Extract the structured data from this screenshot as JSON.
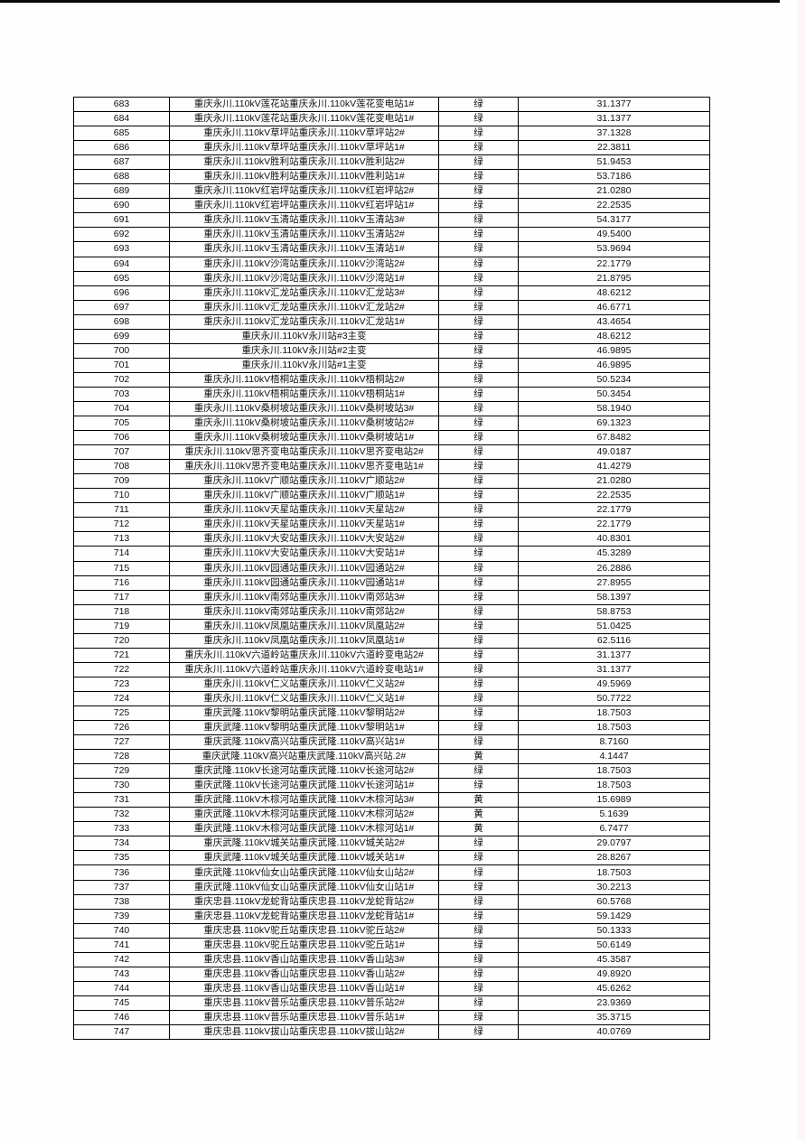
{
  "page": {
    "kind": "substation-load-table",
    "background_color": "#fefefe",
    "top_bar_color": "#0a0a0a",
    "border_color": "#000000",
    "text_color": "#111111",
    "status_green_label": "绿",
    "status_yellow_label": "黄"
  },
  "table": {
    "rows": [
      [
        "683",
        "重庆永川.110kV莲花站重庆永川.110kV莲花变电站1#",
        "绿",
        "31.1377"
      ],
      [
        "684",
        "重庆永川.110kV莲花站重庆永川.110kV莲花变电站1#",
        "绿",
        "31.1377"
      ],
      [
        "685",
        "重庆永川.110kV草坪站重庆永川.110kV草坪站2#",
        "绿",
        "37.1328"
      ],
      [
        "686",
        "重庆永川.110kV草坪站重庆永川.110kV草坪站1#",
        "绿",
        "22.3811"
      ],
      [
        "687",
        "重庆永川.110kV胜利站重庆永川.110kV胜利站2#",
        "绿",
        "51.9453"
      ],
      [
        "688",
        "重庆永川.110kV胜利站重庆永川.110kV胜利站1#",
        "绿",
        "53.7186"
      ],
      [
        "689",
        "重庆永川.110kV红岩坪站重庆永川.110kV红岩坪站2#",
        "绿",
        "21.0280"
      ],
      [
        "690",
        "重庆永川.110kV红岩坪站重庆永川.110kV红岩坪站1#",
        "绿",
        "22.2535"
      ],
      [
        "691",
        "重庆永川.110kV玉清站重庆永川.110kV玉清站3#",
        "绿",
        "54.3177"
      ],
      [
        "692",
        "重庆永川.110kV玉清站重庆永川.110kV玉清站2#",
        "绿",
        "49.5400"
      ],
      [
        "693",
        "重庆永川.110kV玉清站重庆永川.110kV玉清站1#",
        "绿",
        "53.9694"
      ],
      [
        "694",
        "重庆永川.110kV沙湾站重庆永川.110kV沙湾站2#",
        "绿",
        "22.1779"
      ],
      [
        "695",
        "重庆永川.110kV沙湾站重庆永川.110kV沙湾站1#",
        "绿",
        "21.8795"
      ],
      [
        "696",
        "重庆永川.110kV汇龙站重庆永川.110kV汇龙站3#",
        "绿",
        "48.6212"
      ],
      [
        "697",
        "重庆永川.110kV汇龙站重庆永川.110kV汇龙站2#",
        "绿",
        "46.6771"
      ],
      [
        "698",
        "重庆永川.110kV汇龙站重庆永川.110kV汇龙站1#",
        "绿",
        "43.4654"
      ],
      [
        "699",
        "重庆永川.110kV永川站#3主变",
        "绿",
        "48.6212"
      ],
      [
        "700",
        "重庆永川.110kV永川站#2主变",
        "绿",
        "46.9895"
      ],
      [
        "701",
        "重庆永川.110kV永川站#1主变",
        "绿",
        "46.9895"
      ],
      [
        "702",
        "重庆永川.110kV梧桐站重庆永川.110kV梧桐站2#",
        "绿",
        "50.5234"
      ],
      [
        "703",
        "重庆永川.110kV梧桐站重庆永川.110kV梧桐站1#",
        "绿",
        "50.3454"
      ],
      [
        "704",
        "重庆永川.110kV桑树坡站重庆永川.110kV桑树坡站3#",
        "绿",
        "58.1940"
      ],
      [
        "705",
        "重庆永川.110kV桑树坡站重庆永川.110kV桑树坡站2#",
        "绿",
        "69.1323"
      ],
      [
        "706",
        "重庆永川.110kV桑树坡站重庆永川.110kV桑树坡站1#",
        "绿",
        "67.8482"
      ],
      [
        "707",
        "重庆永川.110kV思齐变电站重庆永川.110kV思齐变电站2#",
        "绿",
        "49.0187"
      ],
      [
        "708",
        "重庆永川.110kV思齐变电站重庆永川.110kV思齐变电站1#",
        "绿",
        "41.4279"
      ],
      [
        "709",
        "重庆永川.110kV广顺站重庆永川.110kV广顺站2#",
        "绿",
        "21.0280"
      ],
      [
        "710",
        "重庆永川.110kV广顺站重庆永川.110kV广顺站1#",
        "绿",
        "22.2535"
      ],
      [
        "711",
        "重庆永川.110kV天星站重庆永川.110kV天星站2#",
        "绿",
        "22.1779"
      ],
      [
        "712",
        "重庆永川.110kV天星站重庆永川.110kV天星站1#",
        "绿",
        "22.1779"
      ],
      [
        "713",
        "重庆永川.110kV大安站重庆永川.110kV大安站2#",
        "绿",
        "40.8301"
      ],
      [
        "714",
        "重庆永川.110kV大安站重庆永川.110kV大安站1#",
        "绿",
        "45.3289"
      ],
      [
        "715",
        "重庆永川.110kV园通站重庆永川.110kV园通站2#",
        "绿",
        "26.2886"
      ],
      [
        "716",
        "重庆永川.110kV园通站重庆永川.110kV园通站1#",
        "绿",
        "27.8955"
      ],
      [
        "717",
        "重庆永川.110kV南郊站重庆永川.110kV南郊站3#",
        "绿",
        "58.1397"
      ],
      [
        "718",
        "重庆永川.110kV南郊站重庆永川.110kV南郊站2#",
        "绿",
        "58.8753"
      ],
      [
        "719",
        "重庆永川.110kV凤凰站重庆永川.110kV凤凰站2#",
        "绿",
        "51.0425"
      ],
      [
        "720",
        "重庆永川.110kV凤凰站重庆永川.110kV凤凰站1#",
        "绿",
        "62.5116"
      ],
      [
        "721",
        "重庆永川.110kV六道岭站重庆永川.110kV六道岭变电站2#",
        "绿",
        "31.1377"
      ],
      [
        "722",
        "重庆永川.110kV六道岭站重庆永川.110kV六道岭变电站1#",
        "绿",
        "31.1377"
      ],
      [
        "723",
        "重庆永川.110kV仁义站重庆永川.110kV仁义站2#",
        "绿",
        "49.5969"
      ],
      [
        "724",
        "重庆永川.110kV仁义站重庆永川.110kV仁义站1#",
        "绿",
        "50.7722"
      ],
      [
        "725",
        "重庆武隆.110kV黎明站重庆武隆.110kV黎明站2#",
        "绿",
        "18.7503"
      ],
      [
        "726",
        "重庆武隆.110kV黎明站重庆武隆.110kV黎明站1#",
        "绿",
        "18.7503"
      ],
      [
        "727",
        "重庆武隆.110kV高兴站重庆武隆.110kV高兴站1#",
        "绿",
        "8.7160"
      ],
      [
        "728",
        "重庆武隆.110kV高兴站重庆武隆.110kV高兴站.2#",
        "黄",
        "4.1447"
      ],
      [
        "729",
        "重庆武隆.110kV长途河站重庆武隆.110kV长途河站2#",
        "绿",
        "18.7503"
      ],
      [
        "730",
        "重庆武隆.110kV长途河站重庆武隆.110kV长途河站1#",
        "绿",
        "18.7503"
      ],
      [
        "731",
        "重庆武隆.110kV木棕河站重庆武隆.110kV木棕河站3#",
        "黄",
        "15.6989"
      ],
      [
        "732",
        "重庆武隆.110kV木棕河站重庆武隆.110kV木棕河站2#",
        "黄",
        "5.1639"
      ],
      [
        "733",
        "重庆武隆.110kV木棕河站重庆武隆.110kV木棕河站1#",
        "黄",
        "6.7477"
      ],
      [
        "734",
        "重庆武隆.110kV城关站重庆武隆.110kV城关站2#",
        "绿",
        "29.0797"
      ],
      [
        "735",
        "重庆武隆.110kV城关站重庆武隆.110kV城关站1#",
        "绿",
        "28.8267"
      ],
      [
        "736",
        "重庆武隆.110kV仙女山站重庆武隆.110kV仙女山站2#",
        "绿",
        "18.7503"
      ],
      [
        "737",
        "重庆武隆.110kV仙女山站重庆武隆.110kV仙女山站1#",
        "绿",
        "30.2213"
      ],
      [
        "738",
        "重庆忠县.110kV龙蛇背站重庆忠县.110kV龙蛇背站2#",
        "绿",
        "60.5768"
      ],
      [
        "739",
        "重庆忠县.110kV龙蛇背站重庆忠县.110kV龙蛇背站1#",
        "绿",
        "59.1429"
      ],
      [
        "740",
        "重庆忠县.110kV驼丘站重庆忠县.110kV驼丘站2#",
        "绿",
        "50.1333"
      ],
      [
        "741",
        "重庆忠县.110kV驼丘站重庆忠县.110kV驼丘站1#",
        "绿",
        "50.6149"
      ],
      [
        "742",
        "重庆忠县.110kV香山站重庆忠县.110kV香山站3#",
        "绿",
        "45.3587"
      ],
      [
        "743",
        "重庆忠县.110kV香山站重庆忠县.110kV香山站2#",
        "绿",
        "49.8920"
      ],
      [
        "744",
        "重庆忠县.110kV香山站重庆忠县.110kV香山站1#",
        "绿",
        "45.6262"
      ],
      [
        "745",
        "重庆忠县.110kV普乐站重庆忠县.110kV普乐站2#",
        "绿",
        "23.9369"
      ],
      [
        "746",
        "重庆忠县.110kV普乐站重庆忠县.110kV普乐站1#",
        "绿",
        "35.3715"
      ],
      [
        "747",
        "重庆忠县.110kV拔山站重庆忠县.110kV拔山站2#",
        "绿",
        "40.0769"
      ]
    ]
  }
}
